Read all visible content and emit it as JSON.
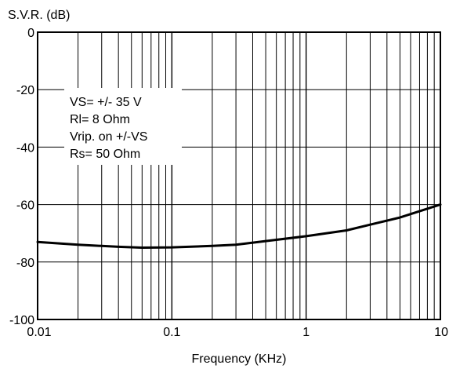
{
  "chart_data": {
    "type": "line",
    "title": "",
    "ylabel": "S.V.R. (dB)",
    "xlabel": "Frequency (KHz)",
    "xscale": "log",
    "xlim": [
      0.01,
      10
    ],
    "ylim": [
      -100,
      0
    ],
    "grid": true,
    "x_ticks": [
      0.01,
      0.1,
      1,
      10
    ],
    "x_tick_labels": [
      "0.01",
      "0.1",
      "1",
      "10"
    ],
    "y_ticks": [
      0,
      -20,
      -40,
      -60,
      -80,
      -100
    ],
    "y_tick_labels": [
      "0",
      "-20",
      "-40",
      "-60",
      "-80",
      "-100"
    ],
    "annotation_lines": [
      "VS= +/- 35 V",
      "Rl= 8 Ohm",
      "Vrip. on +/-VS",
      "Rs= 50 Ohm"
    ],
    "series": [
      {
        "x": [
          0.01,
          0.02,
          0.04,
          0.06,
          0.1,
          0.2,
          0.3,
          0.5,
          1,
          2,
          3,
          5,
          10
        ],
        "y": [
          -73,
          -74,
          -74.7,
          -75,
          -74.9,
          -74.4,
          -74,
          -72.7,
          -71,
          -69,
          -67,
          -64.5,
          -60
        ]
      }
    ],
    "colors": {
      "line": "#000000",
      "grid": "#000000",
      "background": "#ffffff"
    }
  }
}
